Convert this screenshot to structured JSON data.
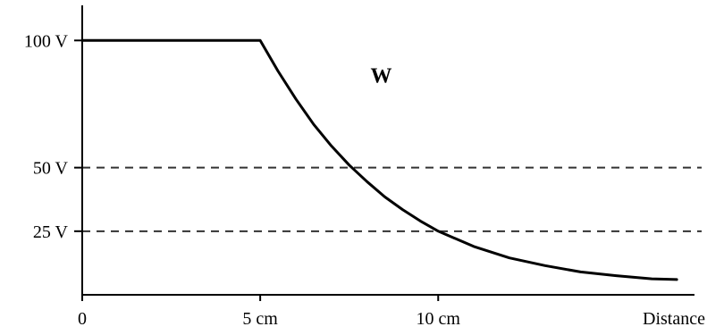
{
  "chart_data": {
    "type": "line",
    "title": "",
    "xlabel": "Distance",
    "ylabel": "",
    "xlim": [
      0,
      17.2
    ],
    "ylim": [
      0,
      113.8
    ],
    "x_ticks": [
      {
        "value": 0,
        "label": "0"
      },
      {
        "value": 5,
        "label": "5 cm"
      },
      {
        "value": 10,
        "label": "10 cm"
      }
    ],
    "y_ticks": [
      {
        "value": 100,
        "label": "100 V"
      },
      {
        "value": 50,
        "label": "50 V"
      },
      {
        "value": 25,
        "label": "25 V"
      }
    ],
    "reference_lines": [
      {
        "y": 50,
        "style": "dashed"
      },
      {
        "y": 25,
        "style": "dashed"
      }
    ],
    "series": [
      {
        "name": "W",
        "points": [
          {
            "x": 0,
            "y": 100
          },
          {
            "x": 5,
            "y": 100
          },
          {
            "x": 5.5,
            "y": 88
          },
          {
            "x": 6,
            "y": 77
          },
          {
            "x": 6.5,
            "y": 67
          },
          {
            "x": 7,
            "y": 58.5
          },
          {
            "x": 7.5,
            "y": 51
          },
          {
            "x": 8,
            "y": 44.5
          },
          {
            "x": 8.5,
            "y": 38.5
          },
          {
            "x": 9,
            "y": 33.5
          },
          {
            "x": 9.5,
            "y": 29
          },
          {
            "x": 10,
            "y": 25
          },
          {
            "x": 11,
            "y": 19
          },
          {
            "x": 12,
            "y": 14.5
          },
          {
            "x": 13,
            "y": 11.5
          },
          {
            "x": 14,
            "y": 9
          },
          {
            "x": 15,
            "y": 7.5
          },
          {
            "x": 16,
            "y": 6.3
          },
          {
            "x": 16.7,
            "y": 6
          }
        ]
      }
    ],
    "grid": false,
    "legend": "none",
    "colors": {
      "line": "#000000",
      "axis": "#000000",
      "dashed": "#333333"
    }
  }
}
